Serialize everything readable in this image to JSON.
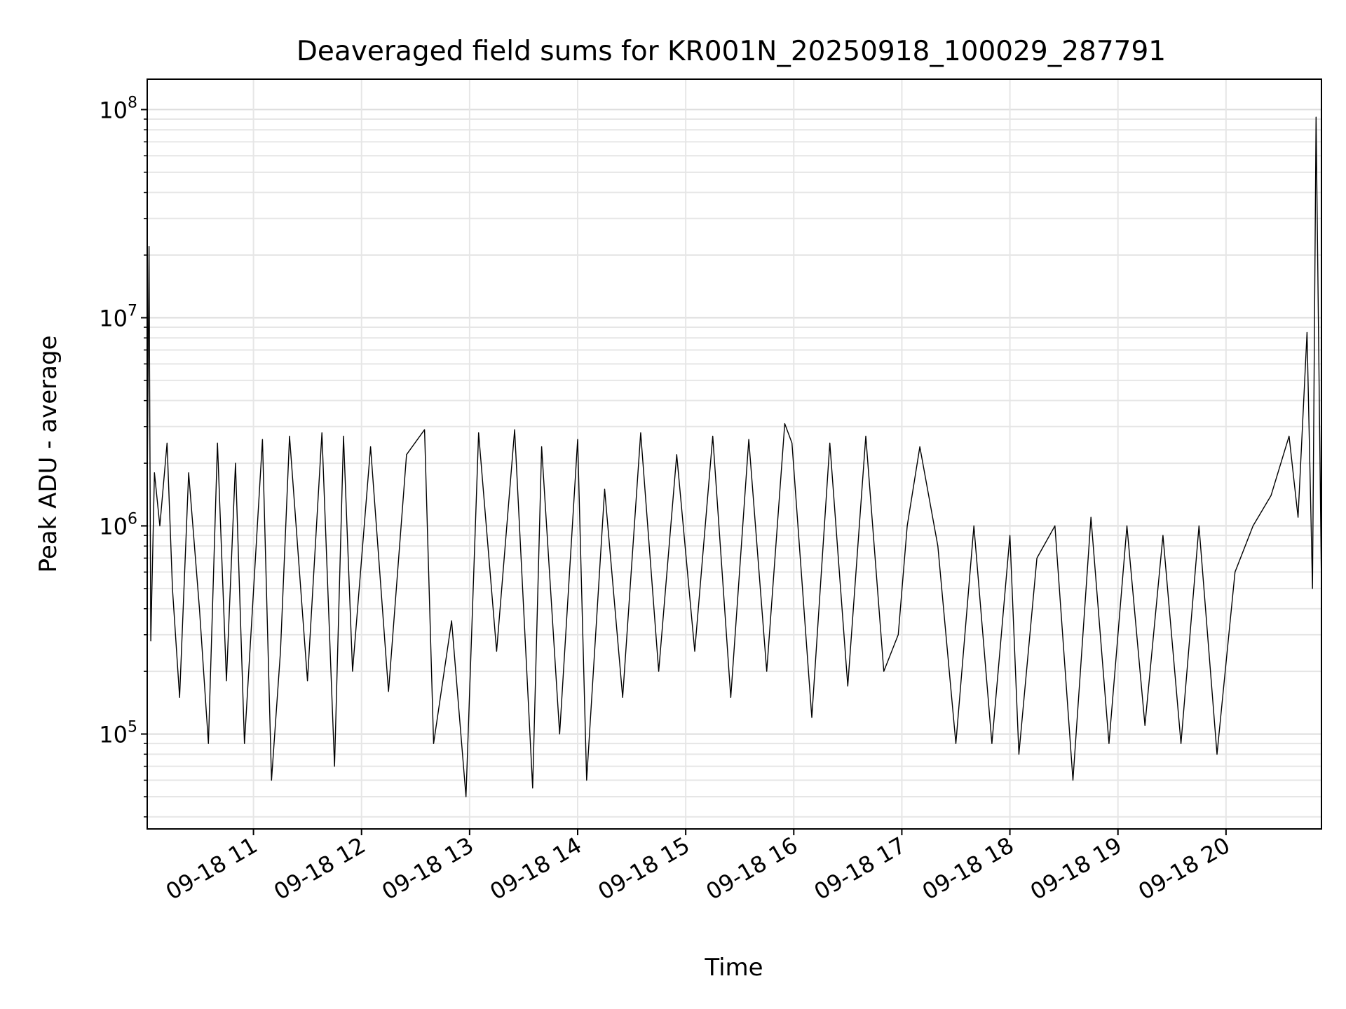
{
  "chart_data": {
    "type": "line",
    "title": "Deaveraged field sums for KR001N_20250918_100029_287791",
    "xlabel": "Time",
    "ylabel": "Peak ADU - average",
    "yscale": "log",
    "ylim": [
      35000,
      140000000
    ],
    "xlim": [
      "2025-09-18 10:01",
      "2025-09-18 20:53"
    ],
    "grid": true,
    "line_color": "#000000",
    "x_ticks": [
      {
        "t": "2025-09-18 11:00",
        "label": "09-18 11"
      },
      {
        "t": "2025-09-18 12:00",
        "label": "09-18 12"
      },
      {
        "t": "2025-09-18 13:00",
        "label": "09-18 13"
      },
      {
        "t": "2025-09-18 14:00",
        "label": "09-18 14"
      },
      {
        "t": "2025-09-18 15:00",
        "label": "09-18 15"
      },
      {
        "t": "2025-09-18 16:00",
        "label": "09-18 16"
      },
      {
        "t": "2025-09-18 17:00",
        "label": "09-18 17"
      },
      {
        "t": "2025-09-18 18:00",
        "label": "09-18 18"
      },
      {
        "t": "2025-09-18 19:00",
        "label": "09-18 19"
      },
      {
        "t": "2025-09-18 20:00",
        "label": "09-18 20"
      }
    ],
    "y_ticks": [
      {
        "value": 100000,
        "base": "10",
        "exp": "5"
      },
      {
        "value": 1000000,
        "base": "10",
        "exp": "6"
      },
      {
        "value": 10000000,
        "base": "10",
        "exp": "7"
      },
      {
        "value": 100000000,
        "base": "10",
        "exp": "8"
      }
    ],
    "series": [
      {
        "x": [
          "2025-09-18 10:01",
          "2025-09-18 10:02",
          "2025-09-18 10:03",
          "2025-09-18 10:05",
          "2025-09-18 10:08",
          "2025-09-18 10:12",
          "2025-09-18 10:15",
          "2025-09-18 10:19",
          "2025-09-18 10:24",
          "2025-09-18 10:30",
          "2025-09-18 10:35",
          "2025-09-18 10:40",
          "2025-09-18 10:45",
          "2025-09-18 10:50",
          "2025-09-18 10:55",
          "2025-09-18 11:05",
          "2025-09-18 11:10",
          "2025-09-18 11:15",
          "2025-09-18 11:20",
          "2025-09-18 11:30",
          "2025-09-18 11:38",
          "2025-09-18 11:45",
          "2025-09-18 11:50",
          "2025-09-18 11:55",
          "2025-09-18 12:05",
          "2025-09-18 12:15",
          "2025-09-18 12:25",
          "2025-09-18 12:35",
          "2025-09-18 12:40",
          "2025-09-18 12:50",
          "2025-09-18 12:58",
          "2025-09-18 13:05",
          "2025-09-18 13:15",
          "2025-09-18 13:25",
          "2025-09-18 13:35",
          "2025-09-18 13:40",
          "2025-09-18 13:50",
          "2025-09-18 14:00",
          "2025-09-18 14:05",
          "2025-09-18 14:15",
          "2025-09-18 14:25",
          "2025-09-18 14:35",
          "2025-09-18 14:45",
          "2025-09-18 14:55",
          "2025-09-18 15:05",
          "2025-09-18 15:15",
          "2025-09-18 15:25",
          "2025-09-18 15:35",
          "2025-09-18 15:45",
          "2025-09-18 15:55",
          "2025-09-18 15:59",
          "2025-09-18 16:10",
          "2025-09-18 16:20",
          "2025-09-18 16:30",
          "2025-09-18 16:40",
          "2025-09-18 16:50",
          "2025-09-18 16:58",
          "2025-09-18 17:03",
          "2025-09-18 17:10",
          "2025-09-18 17:20",
          "2025-09-18 17:30",
          "2025-09-18 17:40",
          "2025-09-18 17:50",
          "2025-09-18 18:00",
          "2025-09-18 18:05",
          "2025-09-18 18:15",
          "2025-09-18 18:25",
          "2025-09-18 18:35",
          "2025-09-18 18:45",
          "2025-09-18 18:55",
          "2025-09-18 19:05",
          "2025-09-18 19:15",
          "2025-09-18 19:25",
          "2025-09-18 19:35",
          "2025-09-18 19:45",
          "2025-09-18 19:55",
          "2025-09-18 20:05",
          "2025-09-18 20:15",
          "2025-09-18 20:25",
          "2025-09-18 20:35",
          "2025-09-18 20:40",
          "2025-09-18 20:45",
          "2025-09-18 20:48",
          "2025-09-18 20:50",
          "2025-09-18 20:53"
        ],
        "y": [
          1500000,
          22000000,
          280000,
          1800000,
          1000000,
          2500000,
          500000,
          150000,
          1800000,
          400000,
          90000,
          2500000,
          180000,
          2000000,
          90000,
          2600000,
          60000,
          250000,
          2700000,
          180000,
          2800000,
          70000,
          2700000,
          200000,
          2400000,
          160000,
          2200000,
          2900000,
          90000,
          350000,
          50000,
          2800000,
          250000,
          2900000,
          55000,
          2400000,
          100000,
          2600000,
          60000,
          1500000,
          150000,
          2800000,
          200000,
          2200000,
          250000,
          2700000,
          150000,
          2600000,
          200000,
          3100000,
          2500000,
          120000,
          2500000,
          170000,
          2700000,
          200000,
          300000,
          1000000,
          2400000,
          800000,
          90000,
          1000000,
          90000,
          900000,
          80000,
          700000,
          1000000,
          60000,
          1100000,
          90000,
          1000000,
          110000,
          900000,
          90000,
          1000000,
          80000,
          600000,
          1000000,
          1400000,
          2700000,
          1100000,
          8500000,
          500000,
          92000000,
          500000
        ]
      }
    ]
  }
}
